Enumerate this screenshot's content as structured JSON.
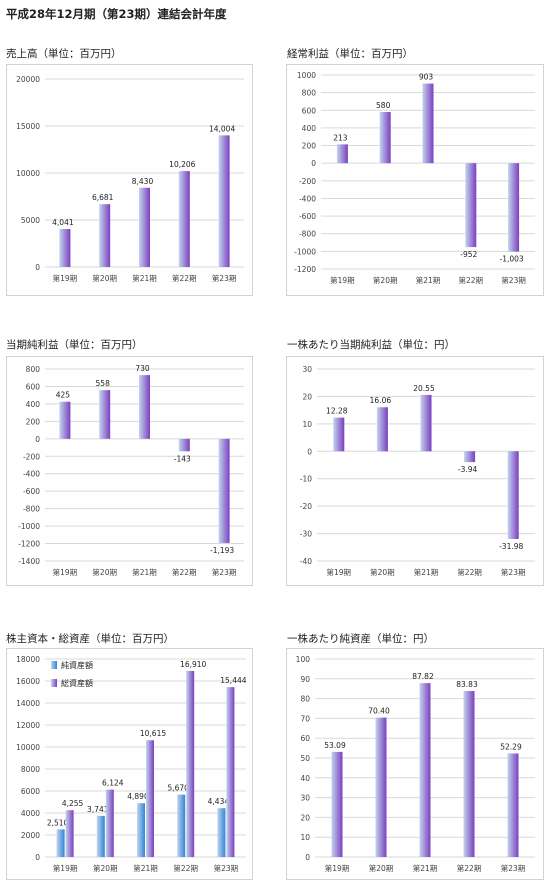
{
  "page_title": "平成28年12月期（第23期）連結会計年度",
  "chart_data": [
    {
      "title": "売上高（単位：百万円）",
      "type": "bar",
      "categories": [
        "第19期",
        "第20期",
        "第21期",
        "第22期",
        "第23期"
      ],
      "values": [
        4041,
        6681,
        8430,
        10206,
        14004
      ],
      "labels": [
        "4,041",
        "6,681",
        "8,430",
        "10,206",
        "14,004"
      ],
      "ylim": [
        0,
        20000
      ],
      "yticks": [
        "20000",
        "15000",
        "10000",
        "5000",
        "0"
      ],
      "grid": true
    },
    {
      "title": "経常利益（単位：百万円）",
      "type": "bar",
      "categories": [
        "第19期",
        "第20期",
        "第21期",
        "第22期",
        "第23期"
      ],
      "values": [
        213,
        580,
        903,
        -952,
        -1003
      ],
      "labels": [
        "213",
        "580",
        "903",
        "-952",
        "-1,003"
      ],
      "ylim": [
        -1200,
        1000
      ],
      "yticks": [
        "1000",
        "800",
        "600",
        "400",
        "200",
        "0",
        "-200",
        "-400",
        "-600",
        "-800",
        "-1000",
        "-1200"
      ],
      "grid": true
    },
    {
      "title": "当期純利益（単位：百万円）",
      "type": "bar",
      "categories": [
        "第19期",
        "第20期",
        "第21期",
        "第22期",
        "第23期"
      ],
      "values": [
        425,
        558,
        730,
        -143,
        -1193
      ],
      "labels": [
        "425",
        "558",
        "730",
        "-143",
        "-1,193"
      ],
      "ylim": [
        -1400,
        800
      ],
      "yticks": [
        "800",
        "600",
        "400",
        "200",
        "0",
        "-200",
        "-400",
        "-600",
        "-800",
        "-1000",
        "-1200",
        "-1400"
      ],
      "grid": true
    },
    {
      "title": "一株あたり当期純利益（単位：円）",
      "type": "bar",
      "categories": [
        "第19期",
        "第20期",
        "第21期",
        "第22期",
        "第23期"
      ],
      "values": [
        12.28,
        16.06,
        20.55,
        -3.94,
        -31.98
      ],
      "labels": [
        "12.28",
        "16.06",
        "20.55",
        "-3.94",
        "-31.98"
      ],
      "ylim": [
        -40,
        30
      ],
      "yticks": [
        "30",
        "20",
        "10",
        "0",
        "-10",
        "-20",
        "-30",
        "-40"
      ],
      "grid": true
    },
    {
      "title": "株主資本・総資産（単位：百万円）",
      "type": "bar",
      "categories": [
        "第19期",
        "第20期",
        "第21期",
        "第22期",
        "第23期"
      ],
      "series": [
        {
          "name": "純資産額",
          "values": [
            2510,
            3741,
            4890,
            5670,
            4434
          ],
          "labels": [
            "2,510",
            "3,741",
            "4,890",
            "5,670",
            "4,434"
          ]
        },
        {
          "name": "総資産額",
          "values": [
            4255,
            6124,
            10615,
            16910,
            15444
          ],
          "labels": [
            "4,255",
            "6,124",
            "10,615",
            "16,910",
            "15,444"
          ]
        }
      ],
      "ylim": [
        0,
        18000
      ],
      "yticks": [
        "18000",
        "16000",
        "14000",
        "12000",
        "10000",
        "8000",
        "6000",
        "4000",
        "2000",
        "0"
      ],
      "legend": "top-left",
      "grid": true
    },
    {
      "title": "一株あたり純資産（単位：円）",
      "type": "bar",
      "categories": [
        "第19期",
        "第20期",
        "第21期",
        "第22期",
        "第23期"
      ],
      "values": [
        53.09,
        70.4,
        87.82,
        83.83,
        52.29
      ],
      "labels": [
        "53.09",
        "70.40",
        "87.82",
        "83.83",
        "52.29"
      ],
      "ylim": [
        0,
        100
      ],
      "yticks": [
        "100",
        "90",
        "80",
        "70",
        "60",
        "50",
        "40",
        "30",
        "20",
        "10",
        "0"
      ],
      "grid": true
    }
  ],
  "colors": {
    "bar_light": "#c3d4ee",
    "bar_purple": "#7b3fbf",
    "bar_blue": "#2e86d6",
    "grid": "#d9d9d9",
    "axis_text": "#444444"
  }
}
